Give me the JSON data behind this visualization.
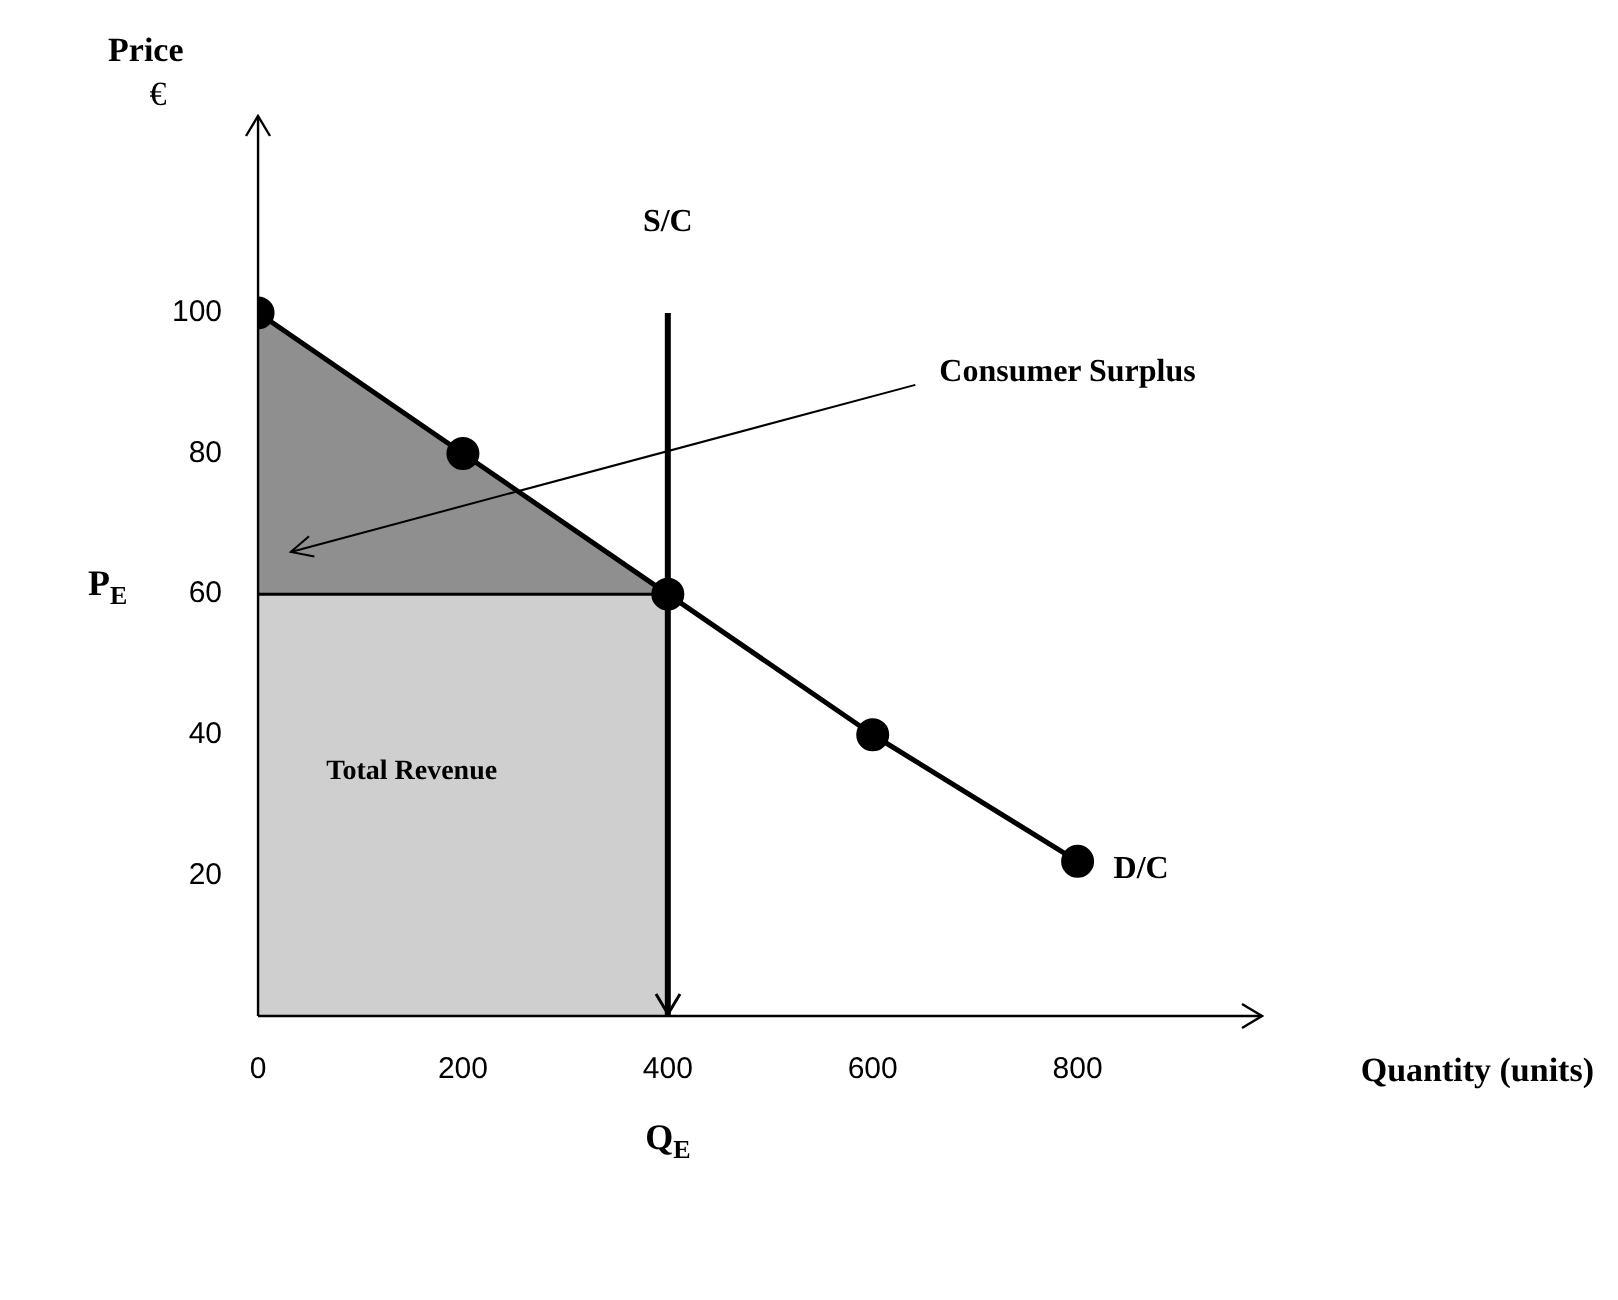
{
  "chart_data": {
    "type": "line",
    "ylabel": "Price",
    "xlabel": "Quantity (units)",
    "xlim": [
      0,
      980
    ],
    "ylim": [
      0,
      128
    ],
    "xticks": [
      0,
      200,
      400,
      600,
      800
    ],
    "yticks": [
      20,
      40,
      60,
      80,
      100
    ],
    "legend": false,
    "series": [
      {
        "type": "area",
        "name": "Total Revenue",
        "x": [
          0,
          400
        ],
        "values": [
          60,
          60
        ],
        "color": "#cfcfcf"
      },
      {
        "type": "area",
        "name": "Consumer Surplus",
        "x": [
          0,
          200,
          400
        ],
        "values": [
          100,
          80,
          60
        ],
        "color": "#8f8f8f"
      },
      {
        "name": "D/C",
        "x": [
          0,
          200,
          400,
          600,
          800
        ],
        "values": [
          100,
          80,
          60,
          40,
          22
        ],
        "color": "#000000",
        "marker": "circle"
      }
    ],
    "ref_lines": [
      {
        "axis": "x",
        "value": 400,
        "label": "S/C",
        "color": "#000000"
      }
    ],
    "annotations": [
      "€",
      "P$_{E}$",
      "Q$_{E}$"
    ]
  }
}
